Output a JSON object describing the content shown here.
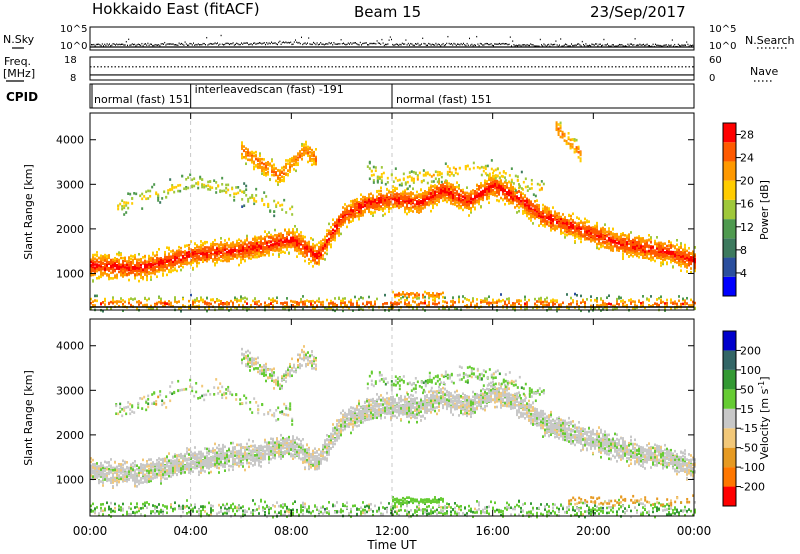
{
  "header": {
    "title": "Hokkaido East (fitACF)",
    "beam": "Beam 15",
    "date": "23/Sep/2017"
  },
  "side_labels": {
    "nsky": "N.Sky",
    "freq": "Freq.",
    "freq_unit": "[MHz]",
    "cpid": "CPID",
    "nsearch": "N.Search",
    "nave": "Nave"
  },
  "cpid_segments": [
    {
      "start_h": 0,
      "end_h": 4,
      "label": "normal (fast)  151"
    },
    {
      "start_h": 4,
      "end_h": 12,
      "label": "interleavedscan (fast)  -191"
    },
    {
      "start_h": 12,
      "end_h": 24,
      "label": "normal (fast)  151"
    }
  ],
  "colors": {
    "power": [
      "#0000ff",
      "#2b4f9e",
      "#3d7a5e",
      "#4f9a4f",
      "#9fc83a",
      "#ffcc00",
      "#ff9900",
      "#ff5a00",
      "#ff0000"
    ],
    "velocity": [
      "#ff0000",
      "#ff7700",
      "#e69a22",
      "#f2c879",
      "#c8c8c8",
      "#66cc33",
      "#339933",
      "#336666",
      "#0000cc"
    ],
    "noise_line": "#000000"
  },
  "chart_data": [
    {
      "name": "noise-panel",
      "type": "line",
      "left_label": "N.Sky",
      "right_label": "N.Search",
      "left_ticks": [
        "10^5",
        "10^0"
      ],
      "right_ticks": [
        "10^5",
        "10^0"
      ],
      "x": [
        0,
        2,
        4,
        6,
        7,
        8,
        9,
        10,
        12,
        14,
        16,
        18,
        20,
        22,
        24
      ],
      "series": [
        {
          "values": [
            0.6,
            0.7,
            0.8,
            0.9,
            1.0,
            1.05,
            1.0,
            0.9,
            0.8,
            0.7,
            0.7,
            0.6,
            0.6,
            0.5,
            0.5
          ]
        }
      ]
    },
    {
      "name": "freq-panel",
      "type": "line",
      "left_label": "Freq. [MHz]",
      "right_label": "Nave",
      "left_ticks": [
        18,
        8
      ],
      "right_ticks": [
        60,
        0
      ],
      "ylim": [
        8,
        18
      ],
      "y2lim": [
        0,
        60
      ],
      "x": [
        0,
        24
      ],
      "series": [
        {
          "name": "Freq.",
          "values": [
            10.2,
            10.2
          ]
        },
        {
          "name": "Nave",
          "values": [
            24,
            24
          ]
        }
      ]
    },
    {
      "name": "power-panel",
      "type": "heatmap",
      "ylabel": "Slant Range [km]",
      "yticks": [
        1000,
        2000,
        3000,
        4000
      ],
      "ylim": [
        180,
        4600
      ],
      "colorbar_label": "Power [dB]",
      "colorbar_ticks": [
        "4",
        "8",
        "12",
        "16",
        "20",
        "24",
        "28"
      ],
      "colorbar_range": [
        0,
        30
      ],
      "bands": [
        {
          "x": [
            0,
            2,
            4,
            6,
            8,
            9,
            10,
            11,
            12,
            13,
            14,
            15,
            16,
            17,
            18,
            19,
            20,
            21,
            22,
            23,
            24
          ],
          "y": [
            1200,
            1150,
            1450,
            1550,
            1800,
            1400,
            2300,
            2600,
            2700,
            2600,
            2900,
            2650,
            3000,
            2700,
            2300,
            2100,
            1900,
            1700,
            1600,
            1500,
            1300
          ],
          "width": 380,
          "min_power": 14,
          "max_power": 28,
          "density": 0.85
        },
        {
          "x": [
            6,
            6.5,
            7,
            7.5,
            8,
            8.5,
            9
          ],
          "y": [
            3800,
            3600,
            3400,
            3200,
            3500,
            3800,
            3600
          ],
          "width": 300,
          "min_power": 14,
          "max_power": 24,
          "density": 0.7
        },
        {
          "x": [
            1,
            2,
            3,
            4,
            5,
            6,
            7,
            8
          ],
          "y": [
            2500,
            2700,
            2900,
            3100,
            3000,
            2800,
            2600,
            2500
          ],
          "width": 350,
          "min_power": 6,
          "max_power": 18,
          "density": 0.3
        },
        {
          "x": [
            11,
            12,
            13,
            14,
            15,
            16,
            17,
            18
          ],
          "y": [
            3300,
            3200,
            3150,
            3300,
            3400,
            3300,
            3100,
            2900
          ],
          "width": 300,
          "min_power": 8,
          "max_power": 20,
          "density": 0.35
        },
        {
          "x": [
            18.5,
            19,
            19.5
          ],
          "y": [
            4300,
            4000,
            3700
          ],
          "width": 250,
          "min_power": 14,
          "max_power": 24,
          "density": 0.6
        },
        {
          "x": [
            0,
            4,
            8,
            12,
            16,
            20,
            24
          ],
          "y": [
            350,
            350,
            350,
            350,
            350,
            350,
            350
          ],
          "width": 250,
          "min_power": 2,
          "max_power": 26,
          "density": 0.45
        },
        {
          "x": [
            12,
            13,
            14
          ],
          "y": [
            550,
            550,
            550
          ],
          "width": 100,
          "min_power": 16,
          "max_power": 24,
          "density": 0.6
        }
      ]
    },
    {
      "name": "velocity-panel",
      "type": "heatmap",
      "ylabel": "Slant Range [km]",
      "yticks": [
        1000,
        2000,
        3000,
        4000
      ],
      "ylim": [
        180,
        4600
      ],
      "colorbar_label": "Velocity [m s^-1]",
      "colorbar_ticks": [
        "-200",
        "-100",
        "-50",
        "-15",
        "15",
        "50",
        "100",
        "200"
      ],
      "colorbar_range": [
        -250,
        250
      ],
      "bands": [
        {
          "x": [
            0,
            2,
            4,
            6,
            8,
            9,
            10,
            11,
            12,
            13,
            14,
            15,
            16,
            17,
            18,
            19,
            20,
            21,
            22,
            23,
            24
          ],
          "y": [
            1200,
            1150,
            1450,
            1550,
            1800,
            1400,
            2300,
            2600,
            2700,
            2600,
            2900,
            2650,
            3000,
            2700,
            2300,
            2100,
            1900,
            1700,
            1600,
            1500,
            1300
          ],
          "width": 380,
          "v_mean": 0,
          "v_spread": 40,
          "density": 0.85
        },
        {
          "x": [
            6,
            6.5,
            7,
            7.5,
            8,
            8.5,
            9
          ],
          "y": [
            3800,
            3600,
            3400,
            3200,
            3500,
            3800,
            3600
          ],
          "width": 300,
          "v_mean": 0,
          "v_spread": 60,
          "density": 0.6
        },
        {
          "x": [
            1,
            2,
            3,
            4,
            5,
            6,
            7,
            8
          ],
          "y": [
            2500,
            2700,
            2900,
            3100,
            3000,
            2800,
            2600,
            2500
          ],
          "width": 350,
          "v_mean": 10,
          "v_spread": 80,
          "density": 0.3
        },
        {
          "x": [
            11,
            12,
            13,
            14,
            15,
            16,
            17,
            18
          ],
          "y": [
            3300,
            3200,
            3150,
            3300,
            3400,
            3300,
            3100,
            2900
          ],
          "width": 300,
          "v_mean": 20,
          "v_spread": 60,
          "density": 0.35
        },
        {
          "x": [
            0,
            4,
            8,
            12,
            16,
            20,
            24
          ],
          "y": [
            350,
            350,
            350,
            350,
            350,
            350,
            350
          ],
          "width": 250,
          "v_mean": 30,
          "v_spread": 80,
          "density": 0.45
        },
        {
          "x": [
            12,
            13,
            14
          ],
          "y": [
            550,
            550,
            550
          ],
          "width": 100,
          "v_mean": 40,
          "v_spread": 15,
          "density": 0.7
        },
        {
          "x": [
            19,
            20,
            21,
            22,
            23,
            24
          ],
          "y": [
            550,
            550,
            550,
            550,
            550,
            550
          ],
          "width": 150,
          "v_mean": -60,
          "v_spread": 30,
          "density": 0.4
        }
      ]
    }
  ],
  "x_axis": {
    "ticks": [
      "00:00",
      "04:00",
      "08:00",
      "12:00",
      "16:00",
      "20:00",
      "00:00"
    ],
    "label": "Time UT"
  }
}
